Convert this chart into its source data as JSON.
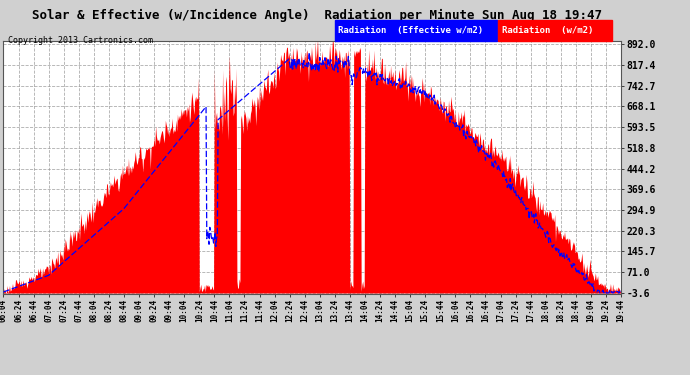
{
  "title": "Solar & Effective (w/Incidence Angle)  Radiation per Minute Sun Aug 18 19:47",
  "copyright": "Copyright 2013 Cartronics.com",
  "legend_blue": "Radiation  (Effective w/m2)",
  "legend_red": "Radiation  (w/m2)",
  "yticks": [
    -3.6,
    71.0,
    145.7,
    220.3,
    294.9,
    369.6,
    444.2,
    518.8,
    593.5,
    668.1,
    742.7,
    817.4,
    892.0
  ],
  "ymin": -3.6,
  "ymax": 892.0,
  "plot_bg": "#ffffff",
  "grid_color": "#aaaaaa",
  "red_color": "#ff0000",
  "blue_color": "#0000ff",
  "outer_bg": "#d0d0d0",
  "title_color": "#000000"
}
